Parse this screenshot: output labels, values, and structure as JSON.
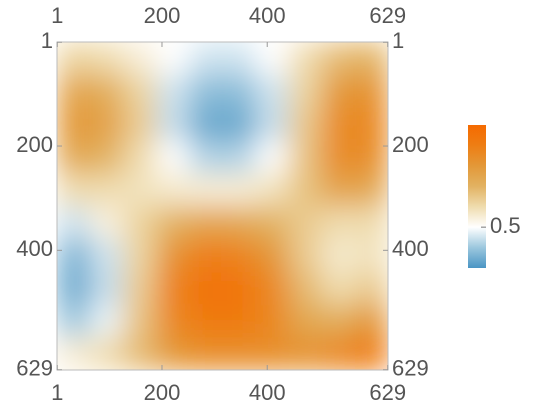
{
  "chart_data": {
    "type": "heatmap",
    "xlim": [
      0.5,
      629.5
    ],
    "ylim": [
      0.5,
      629.5
    ],
    "xticks": [
      1,
      200,
      400,
      629
    ],
    "yticks": [
      1,
      200,
      400,
      629
    ],
    "z": [
      [
        0.62,
        0.6,
        0.55,
        0.5,
        0.45,
        0.45,
        0.5,
        0.6,
        0.68,
        0.7
      ],
      [
        0.75,
        0.72,
        0.62,
        0.45,
        0.38,
        0.38,
        0.45,
        0.62,
        0.8,
        0.82
      ],
      [
        0.8,
        0.76,
        0.64,
        0.44,
        0.34,
        0.34,
        0.44,
        0.65,
        0.85,
        0.86
      ],
      [
        0.74,
        0.7,
        0.6,
        0.5,
        0.42,
        0.42,
        0.5,
        0.66,
        0.85,
        0.84
      ],
      [
        0.6,
        0.6,
        0.58,
        0.56,
        0.55,
        0.55,
        0.58,
        0.66,
        0.76,
        0.74
      ],
      [
        0.45,
        0.54,
        0.62,
        0.7,
        0.75,
        0.74,
        0.7,
        0.64,
        0.6,
        0.6
      ],
      [
        0.36,
        0.45,
        0.62,
        0.82,
        0.9,
        0.88,
        0.8,
        0.64,
        0.56,
        0.58
      ],
      [
        0.34,
        0.44,
        0.64,
        0.88,
        0.96,
        0.95,
        0.86,
        0.68,
        0.6,
        0.64
      ],
      [
        0.4,
        0.48,
        0.66,
        0.86,
        0.92,
        0.92,
        0.86,
        0.74,
        0.72,
        0.8
      ],
      [
        0.55,
        0.6,
        0.68,
        0.8,
        0.84,
        0.84,
        0.84,
        0.82,
        0.86,
        0.92
      ]
    ],
    "zlim": [
      0.3,
      1.0
    ],
    "zticks": [
      0.5
    ],
    "colors": [
      "#4a95c4",
      "#9cc7de",
      "#ffffff",
      "#efdcae",
      "#e2b262",
      "#e39838",
      "#ee7e14",
      "#f56a00"
    ]
  }
}
